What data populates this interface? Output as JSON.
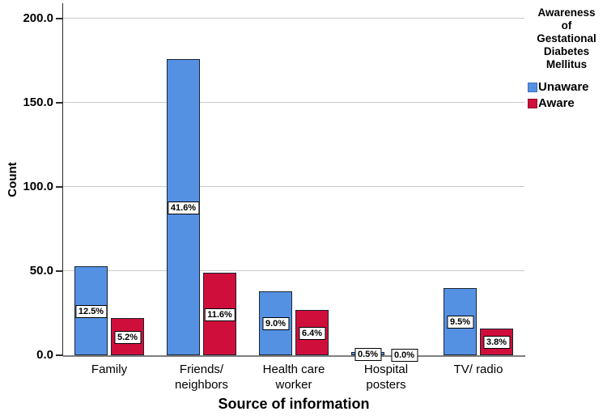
{
  "figure": {
    "background": "#ffffff",
    "y_axis_title": "Count",
    "x_axis_title": "Source of information"
  },
  "legend": {
    "title": "Awareness\nof\nGestational\nDiabetes\nMellitus",
    "items": [
      {
        "label": "Unaware",
        "color": "#5591E3",
        "border": "#3a6fbf"
      },
      {
        "label": "Aware",
        "color": "#D00E3C",
        "border": "#8e0c2c"
      }
    ]
  },
  "chart_data": {
    "type": "bar",
    "title": "",
    "xlabel": "Source of information",
    "ylabel": "Count",
    "categories": [
      "Family",
      "Friends/\nneighbors",
      "Health care\nworker",
      "Hospital\nposters",
      "TV/ radio"
    ],
    "series": [
      {
        "name": "Unaware",
        "color": "#5591E3",
        "values": [
          53,
          176,
          38,
          2,
          40
        ],
        "percent_labels": [
          "12.5%",
          "41.6%",
          "9.0%",
          "0.5%",
          "9.5%"
        ]
      },
      {
        "name": "Aware",
        "color": "#D00E3C",
        "values": [
          22,
          49,
          27,
          0,
          16
        ],
        "percent_labels": [
          "5.2%",
          "11.6%",
          "6.4%",
          "0.0%",
          "3.8%"
        ]
      }
    ],
    "ylim": [
      0,
      200
    ],
    "yticks": [
      0,
      50,
      100,
      150,
      200
    ],
    "ytick_labels": [
      "0.0",
      "50.0",
      "100.0",
      "150.0",
      "200.0"
    ],
    "grid": "horizontal",
    "legend_position": "outside-top-right",
    "bar_border_color": "#1a2430",
    "gridline_color": "#c9c9c9"
  }
}
